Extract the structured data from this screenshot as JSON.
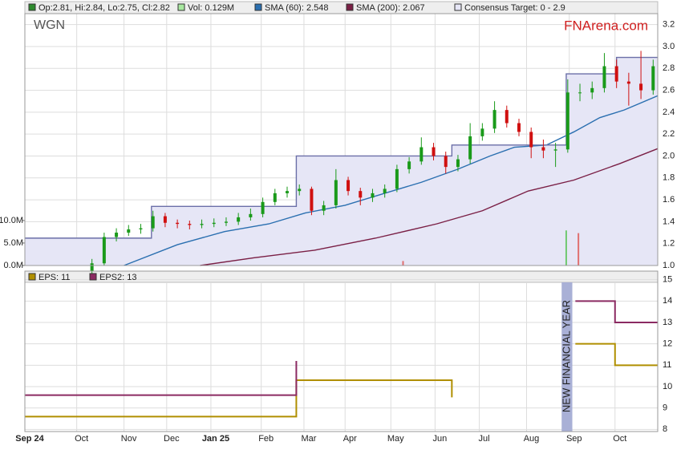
{
  "brand": "FNArena.com",
  "chart_data": [
    {
      "type": "candlestick",
      "title": "WGN",
      "name": "Op:2.81, Hi:2.84, Lo:2.75, Cl:2.82",
      "color": "#2e8b2e",
      "up_color": "#1a9a1a",
      "down_color": "#d01010",
      "x": [
        44,
        52,
        60,
        68,
        76,
        84,
        92,
        100,
        108,
        116,
        124,
        132,
        140,
        148,
        156,
        164,
        172,
        180,
        188,
        196,
        204,
        212,
        220,
        228,
        236,
        244,
        252,
        260,
        268,
        276,
        284,
        292,
        300,
        308,
        316,
        324,
        332,
        340,
        348,
        356,
        364,
        372,
        380,
        388,
        396,
        404,
        412
      ],
      "open": [
        0.95,
        1.02,
        1.26,
        1.3,
        1.33,
        1.34,
        1.45,
        1.39,
        1.38,
        1.37,
        1.38,
        1.39,
        1.4,
        1.44,
        1.47,
        1.58,
        1.66,
        1.68,
        1.7,
        1.5,
        1.55,
        1.78,
        1.68,
        1.62,
        1.66,
        1.7,
        1.88,
        1.95,
        2.08,
        2.0,
        1.9,
        1.97,
        2.18,
        2.25,
        2.42,
        2.3,
        2.22,
        2.08,
        2.05,
        2.06,
        2.58,
        2.58,
        2.62,
        2.82,
        2.68,
        2.66,
        2.6
      ],
      "high": [
        1.06,
        1.3,
        1.34,
        1.37,
        1.38,
        1.5,
        1.48,
        1.42,
        1.41,
        1.42,
        1.43,
        1.44,
        1.48,
        1.52,
        1.62,
        1.7,
        1.72,
        1.74,
        1.72,
        1.59,
        1.88,
        1.81,
        1.71,
        1.7,
        1.74,
        1.92,
        1.99,
        2.17,
        2.12,
        2.04,
        2.01,
        2.3,
        2.3,
        2.5,
        2.46,
        2.34,
        2.26,
        2.15,
        2.12,
        2.7,
        2.66,
        2.68,
        2.94,
        2.88,
        2.76,
        2.96,
        2.88
      ],
      "low": [
        0.92,
        1.0,
        1.22,
        1.27,
        1.29,
        1.31,
        1.35,
        1.34,
        1.33,
        1.34,
        1.35,
        1.36,
        1.37,
        1.41,
        1.44,
        1.55,
        1.62,
        1.64,
        1.46,
        1.46,
        1.52,
        1.64,
        1.55,
        1.58,
        1.62,
        1.67,
        1.84,
        1.92,
        1.96,
        1.84,
        1.86,
        1.93,
        2.14,
        2.21,
        2.26,
        2.18,
        1.98,
        1.98,
        1.9,
        2.03,
        2.5,
        2.52,
        2.58,
        2.62,
        2.46,
        2.52,
        2.56
      ],
      "close": [
        1.02,
        1.26,
        1.3,
        1.33,
        1.34,
        1.45,
        1.39,
        1.38,
        1.37,
        1.38,
        1.39,
        1.4,
        1.44,
        1.47,
        1.58,
        1.66,
        1.68,
        1.7,
        1.5,
        1.55,
        1.78,
        1.68,
        1.62,
        1.66,
        1.7,
        1.88,
        1.95,
        2.08,
        2.0,
        1.9,
        1.97,
        2.18,
        2.25,
        2.42,
        2.3,
        2.22,
        2.08,
        2.05,
        2.06,
        2.58,
        2.58,
        2.62,
        2.82,
        2.68,
        2.66,
        2.6,
        2.82
      ],
      "series": [
        {
          "name": "SMA (60): 2.548",
          "color": "#2a6fb0",
          "x": [
            65,
            100,
            131,
            160,
            184,
            210,
            236,
            260,
            284,
            305,
            321,
            342,
            360,
            377,
            393,
            415
          ],
          "values": [
            1.0,
            1.19,
            1.31,
            1.38,
            1.48,
            1.55,
            1.66,
            1.76,
            1.88,
            2.0,
            2.08,
            2.1,
            2.22,
            2.35,
            2.42,
            2.55
          ]
        },
        {
          "name": "SMA (200): 2.067",
          "color": "#7a1f45",
          "x": [
            115,
            150,
            190,
            230,
            270,
            300,
            330,
            360,
            390,
            415
          ],
          "values": [
            1.0,
            1.07,
            1.14,
            1.25,
            1.38,
            1.5,
            1.68,
            1.78,
            1.93,
            2.067
          ]
        },
        {
          "name": "Consensus Target: 0 - 2.9",
          "color": "#6b6fa8",
          "fill": "#e6e6f6",
          "step": true,
          "x": [
            0,
            83,
            178,
            280,
            355,
            388,
            415
          ],
          "values": [
            1.25,
            1.54,
            2.0,
            2.1,
            2.75,
            2.9,
            2.9
          ]
        }
      ],
      "volume": {
        "name": "Vol: 0.129M",
        "color": "#a8e8a0",
        "x": [
          248,
          355,
          363
        ],
        "values": [
          1.0,
          7.8,
          7.2
        ],
        "colors": [
          "#e07070",
          "#70c870",
          "#e07070"
        ],
        "ylim": [
          0,
          56
        ],
        "yticks": [
          {
            "value": 0,
            "label": "0.0M"
          },
          {
            "value": 5,
            "label": "5.0M"
          },
          {
            "value": 10,
            "label": "10.0M"
          }
        ]
      },
      "xlim": [
        0,
        415
      ],
      "ylim": [
        1.0,
        3.3
      ],
      "yticks": [
        {
          "value": 1.0,
          "label": "1.0"
        },
        1.2,
        1.4,
        1.6,
        1.8,
        {
          "value": 2.0,
          "label": "2.0"
        },
        2.2,
        2.4,
        2.6,
        2.8,
        {
          "value": 3.0,
          "label": "3.0"
        },
        3.2
      ],
      "grid": true
    },
    {
      "type": "line",
      "series": [
        {
          "name": "EPS: 11",
          "color": "#b08f00",
          "step": true,
          "x": [
            0,
            178,
            280,
            353,
            361,
            387,
            415
          ],
          "values": [
            8.6,
            10.3,
            9.5,
            null,
            12,
            11,
            11
          ]
        },
        {
          "name": "EPS2: 13",
          "color": "#8b2a62",
          "step": true,
          "x": [
            0,
            178,
            353,
            361,
            387,
            415
          ],
          "values": [
            9.6,
            11.2,
            null,
            14,
            13,
            13
          ]
        }
      ],
      "band": {
        "label": "NEW FINANCIAL YEAR",
        "color": "#a9b0d6",
        "x": [
          352,
          359
        ]
      },
      "xlim": [
        0,
        415
      ],
      "ylim": [
        7.9,
        15.4
      ],
      "yticks": [
        8,
        9,
        10,
        11,
        12,
        13,
        14,
        15
      ],
      "xticks": [
        {
          "value": 0,
          "label": "Sep 24"
        },
        {
          "value": 34,
          "label": "Oct"
        },
        {
          "value": 65,
          "label": "Nov"
        },
        {
          "value": 93,
          "label": "Dec"
        },
        {
          "value": 122,
          "label": "Jan 25"
        },
        {
          "value": 155,
          "label": "Feb"
        },
        {
          "value": 183,
          "label": "Mar"
        },
        {
          "value": 210,
          "label": "Apr"
        },
        {
          "value": 240,
          "label": "May"
        },
        {
          "value": 269,
          "label": "Jun"
        },
        {
          "value": 298,
          "label": "Jul"
        },
        {
          "value": 329,
          "label": "Aug"
        },
        {
          "value": 357,
          "label": "Sep"
        },
        {
          "value": 387,
          "label": "Oct"
        }
      ],
      "grid": true
    }
  ]
}
